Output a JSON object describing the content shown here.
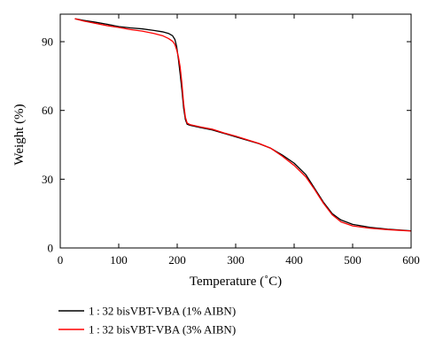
{
  "chart_data": {
    "type": "line",
    "title": "",
    "xlabel": "Temperature (˚C)",
    "ylabel": "Weight (%)",
    "xlim": [
      0,
      600
    ],
    "ylim": [
      0,
      102
    ],
    "xticks": [
      0,
      100,
      200,
      300,
      400,
      500,
      600
    ],
    "yticks": [
      0,
      30,
      60,
      90
    ],
    "grid": false,
    "legend_position": "bottom-left",
    "series": [
      {
        "name": "1 : 32 bisVBT-VBA (1% AIBN)",
        "color": "#000000",
        "x": [
          25,
          40,
          60,
          80,
          100,
          120,
          140,
          160,
          175,
          185,
          192,
          196,
          199,
          202,
          205,
          208,
          211,
          214,
          217,
          222,
          240,
          260,
          280,
          300,
          320,
          340,
          360,
          380,
          400,
          420,
          435,
          450,
          465,
          480,
          500,
          530,
          560,
          600
        ],
        "y": [
          100,
          99.3,
          98.5,
          97.6,
          96.6,
          96.0,
          95.6,
          94.9,
          94.3,
          93.6,
          92.6,
          91.0,
          88.0,
          82.5,
          76.0,
          69.0,
          61.0,
          56.0,
          54.0,
          53.5,
          52.5,
          51.5,
          50.0,
          48.5,
          47.0,
          45.5,
          43.5,
          40.5,
          37.0,
          32.0,
          26.0,
          20.0,
          15.0,
          12.2,
          10.3,
          9.0,
          8.2,
          7.5
        ]
      },
      {
        "name": "1 : 32 bisVBT-VBA (3% AIBN)",
        "color": "#ff0000",
        "x": [
          25,
          40,
          60,
          80,
          100,
          120,
          140,
          160,
          175,
          185,
          192,
          196,
          199,
          202,
          205,
          208,
          211,
          214,
          217,
          222,
          240,
          260,
          280,
          300,
          320,
          340,
          360,
          380,
          400,
          420,
          435,
          450,
          465,
          480,
          500,
          530,
          560,
          600
        ],
        "y": [
          100,
          99.0,
          98.0,
          97.0,
          96.2,
          95.3,
          94.6,
          93.6,
          92.6,
          91.4,
          90.2,
          88.8,
          86.5,
          83.5,
          79.0,
          72.0,
          63.0,
          57.0,
          54.5,
          53.8,
          52.8,
          51.8,
          50.2,
          48.8,
          47.2,
          45.6,
          43.5,
          40.0,
          36.0,
          31.0,
          25.5,
          19.5,
          14.5,
          11.4,
          9.6,
          8.6,
          8.0,
          7.4
        ]
      }
    ]
  }
}
